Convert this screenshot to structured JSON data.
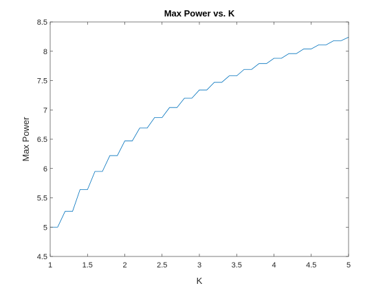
{
  "chart_data": {
    "type": "line",
    "title": "Max Power vs. K",
    "xlabel": "K",
    "ylabel": "Max Power",
    "xlim": [
      1,
      5
    ],
    "ylim": [
      4.5,
      8.5
    ],
    "x_ticks": [
      1,
      1.5,
      2,
      2.5,
      3,
      3.5,
      4,
      4.5,
      5
    ],
    "x_tick_labels": [
      "1",
      "1.5",
      "2",
      "2.5",
      "3",
      "3.5",
      "4",
      "4.5",
      "5"
    ],
    "y_ticks": [
      4.5,
      5,
      5.5,
      6,
      6.5,
      7,
      7.5,
      8,
      8.5
    ],
    "y_tick_labels": [
      "4.5",
      "5",
      "5.5",
      "6",
      "6.5",
      "7",
      "7.5",
      "8",
      "8.5"
    ],
    "grid": false,
    "line_color": "#0072BD",
    "series": [
      {
        "x": [
          1.0,
          1.1,
          1.2,
          1.3,
          1.4,
          1.5,
          1.6,
          1.7,
          1.8,
          1.9,
          2.0,
          2.1,
          2.2,
          2.3,
          2.4,
          2.5,
          2.6,
          2.7,
          2.8,
          2.9,
          3.0,
          3.1,
          3.2,
          3.3,
          3.4,
          3.5,
          3.6,
          3.7,
          3.8,
          3.9,
          4.0,
          4.1,
          4.2,
          4.3,
          4.4,
          4.5,
          4.6,
          4.7,
          4.8,
          4.9,
          5.0
        ],
        "y": [
          5.0,
          5.0,
          5.27,
          5.27,
          5.64,
          5.64,
          5.95,
          5.95,
          6.22,
          6.22,
          6.47,
          6.47,
          6.69,
          6.69,
          6.87,
          6.87,
          7.04,
          7.04,
          7.2,
          7.2,
          7.34,
          7.34,
          7.47,
          7.47,
          7.58,
          7.58,
          7.69,
          7.69,
          7.79,
          7.79,
          7.88,
          7.88,
          7.96,
          7.96,
          8.04,
          8.04,
          8.11,
          8.11,
          8.18,
          8.18,
          8.24
        ]
      }
    ]
  }
}
